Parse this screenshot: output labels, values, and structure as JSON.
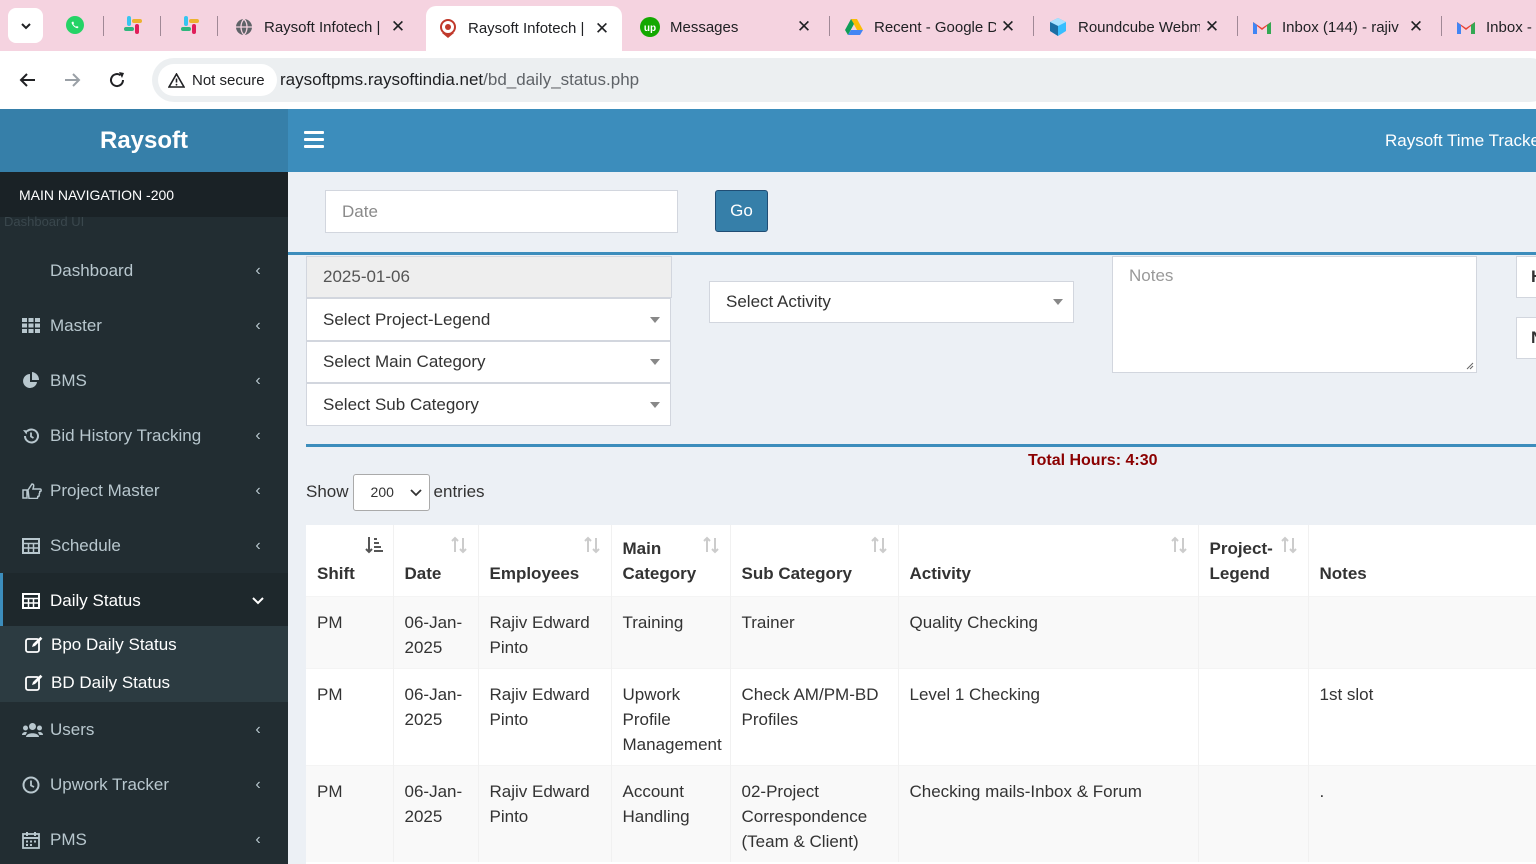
{
  "browser": {
    "tabs": [
      {
        "title": "Raysoft Infotech | ",
        "favicon": "globe-icon",
        "active": false
      },
      {
        "title": "Raysoft Infotech | ",
        "favicon": "raysoft-icon",
        "active": true
      },
      {
        "title": "Messages",
        "favicon": "upwork-icon",
        "active": false
      },
      {
        "title": "Recent - Google Dri",
        "favicon": "google-drive-icon",
        "active": false
      },
      {
        "title": "Roundcube Webm",
        "favicon": "roundcube-icon",
        "active": false
      },
      {
        "title": "Inbox (144) - rajiv",
        "favicon": "gmail-icon",
        "active": false
      },
      {
        "title": "Inbox - ",
        "favicon": "gmail-icon",
        "active": false
      }
    ],
    "security_label": "Not secure",
    "url_host": "raysoftpms.raysoftindia.net",
    "url_path": "/bd_daily_status.php"
  },
  "sidebar": {
    "logo": "Raysoft",
    "nav_header": "MAIN NAVIGATION -200",
    "ghost_text": "Dashboard UI",
    "items": [
      {
        "label": "Dashboard",
        "icon": "dashboard-icon"
      },
      {
        "label": "Master",
        "icon": "grid-icon"
      },
      {
        "label": "BMS",
        "icon": "pie-chart-icon"
      },
      {
        "label": "Bid History Tracking",
        "icon": "history-icon"
      },
      {
        "label": "Project Master",
        "icon": "hand-pointer-icon"
      },
      {
        "label": "Schedule",
        "icon": "table-icon"
      },
      {
        "label": "Daily Status",
        "icon": "table-icon"
      },
      {
        "label": "Users",
        "icon": "users-icon"
      },
      {
        "label": "Upwork Tracker",
        "icon": "clock-icon"
      },
      {
        "label": "PMS",
        "icon": "calendar-icon"
      }
    ],
    "sub_items": [
      {
        "label": "Bpo Daily Status",
        "icon": "edit-icon"
      },
      {
        "label": "BD Daily Status",
        "icon": "edit-icon"
      }
    ]
  },
  "topbar": {
    "title": "Raysoft Time Tracker"
  },
  "filter": {
    "date_placeholder": "Date",
    "go_label": "Go"
  },
  "form": {
    "date_value": "2025-01-06",
    "project_legend": "Select Project-Legend",
    "main_category": "Select Main Category",
    "sub_category": "Select Sub Category",
    "activity": "Select Activity",
    "notes_placeholder": "Notes",
    "edge_field_1": "H",
    "edge_field_2": "N"
  },
  "summary": {
    "total_hours": "Total Hours: 4:30"
  },
  "entries": {
    "show_label": "Show",
    "page_size": "200",
    "entries_label": "entries"
  },
  "table": {
    "columns": [
      "Shift",
      "Date",
      "Employees",
      "Main Category",
      "Sub Category",
      "Activity",
      "Project-Legend",
      "Notes"
    ],
    "rows": [
      [
        "PM",
        "06-Jan-2025",
        "Rajiv Edward Pinto",
        "Training",
        "Trainer",
        "Quality Checking",
        "",
        ""
      ],
      [
        "PM",
        "06-Jan-2025",
        "Rajiv Edward Pinto",
        "Upwork Profile Management",
        "Check AM/PM-BD Profiles",
        "Level 1 Checking",
        "",
        "1st slot"
      ],
      [
        "PM",
        "06-Jan-2025",
        "Rajiv Edward Pinto",
        "Account Handling",
        "02-Project Correspondence (Team & Client)",
        "Checking mails-Inbox & Forum",
        "",
        "."
      ]
    ]
  },
  "colors": {
    "sidebar_bg": "#222d32",
    "logo_bg": "#367fa9",
    "topbar_bg": "#3c8dbc",
    "total_hours": "#8b0000",
    "tabbar_bg": "#f5d3e0"
  }
}
